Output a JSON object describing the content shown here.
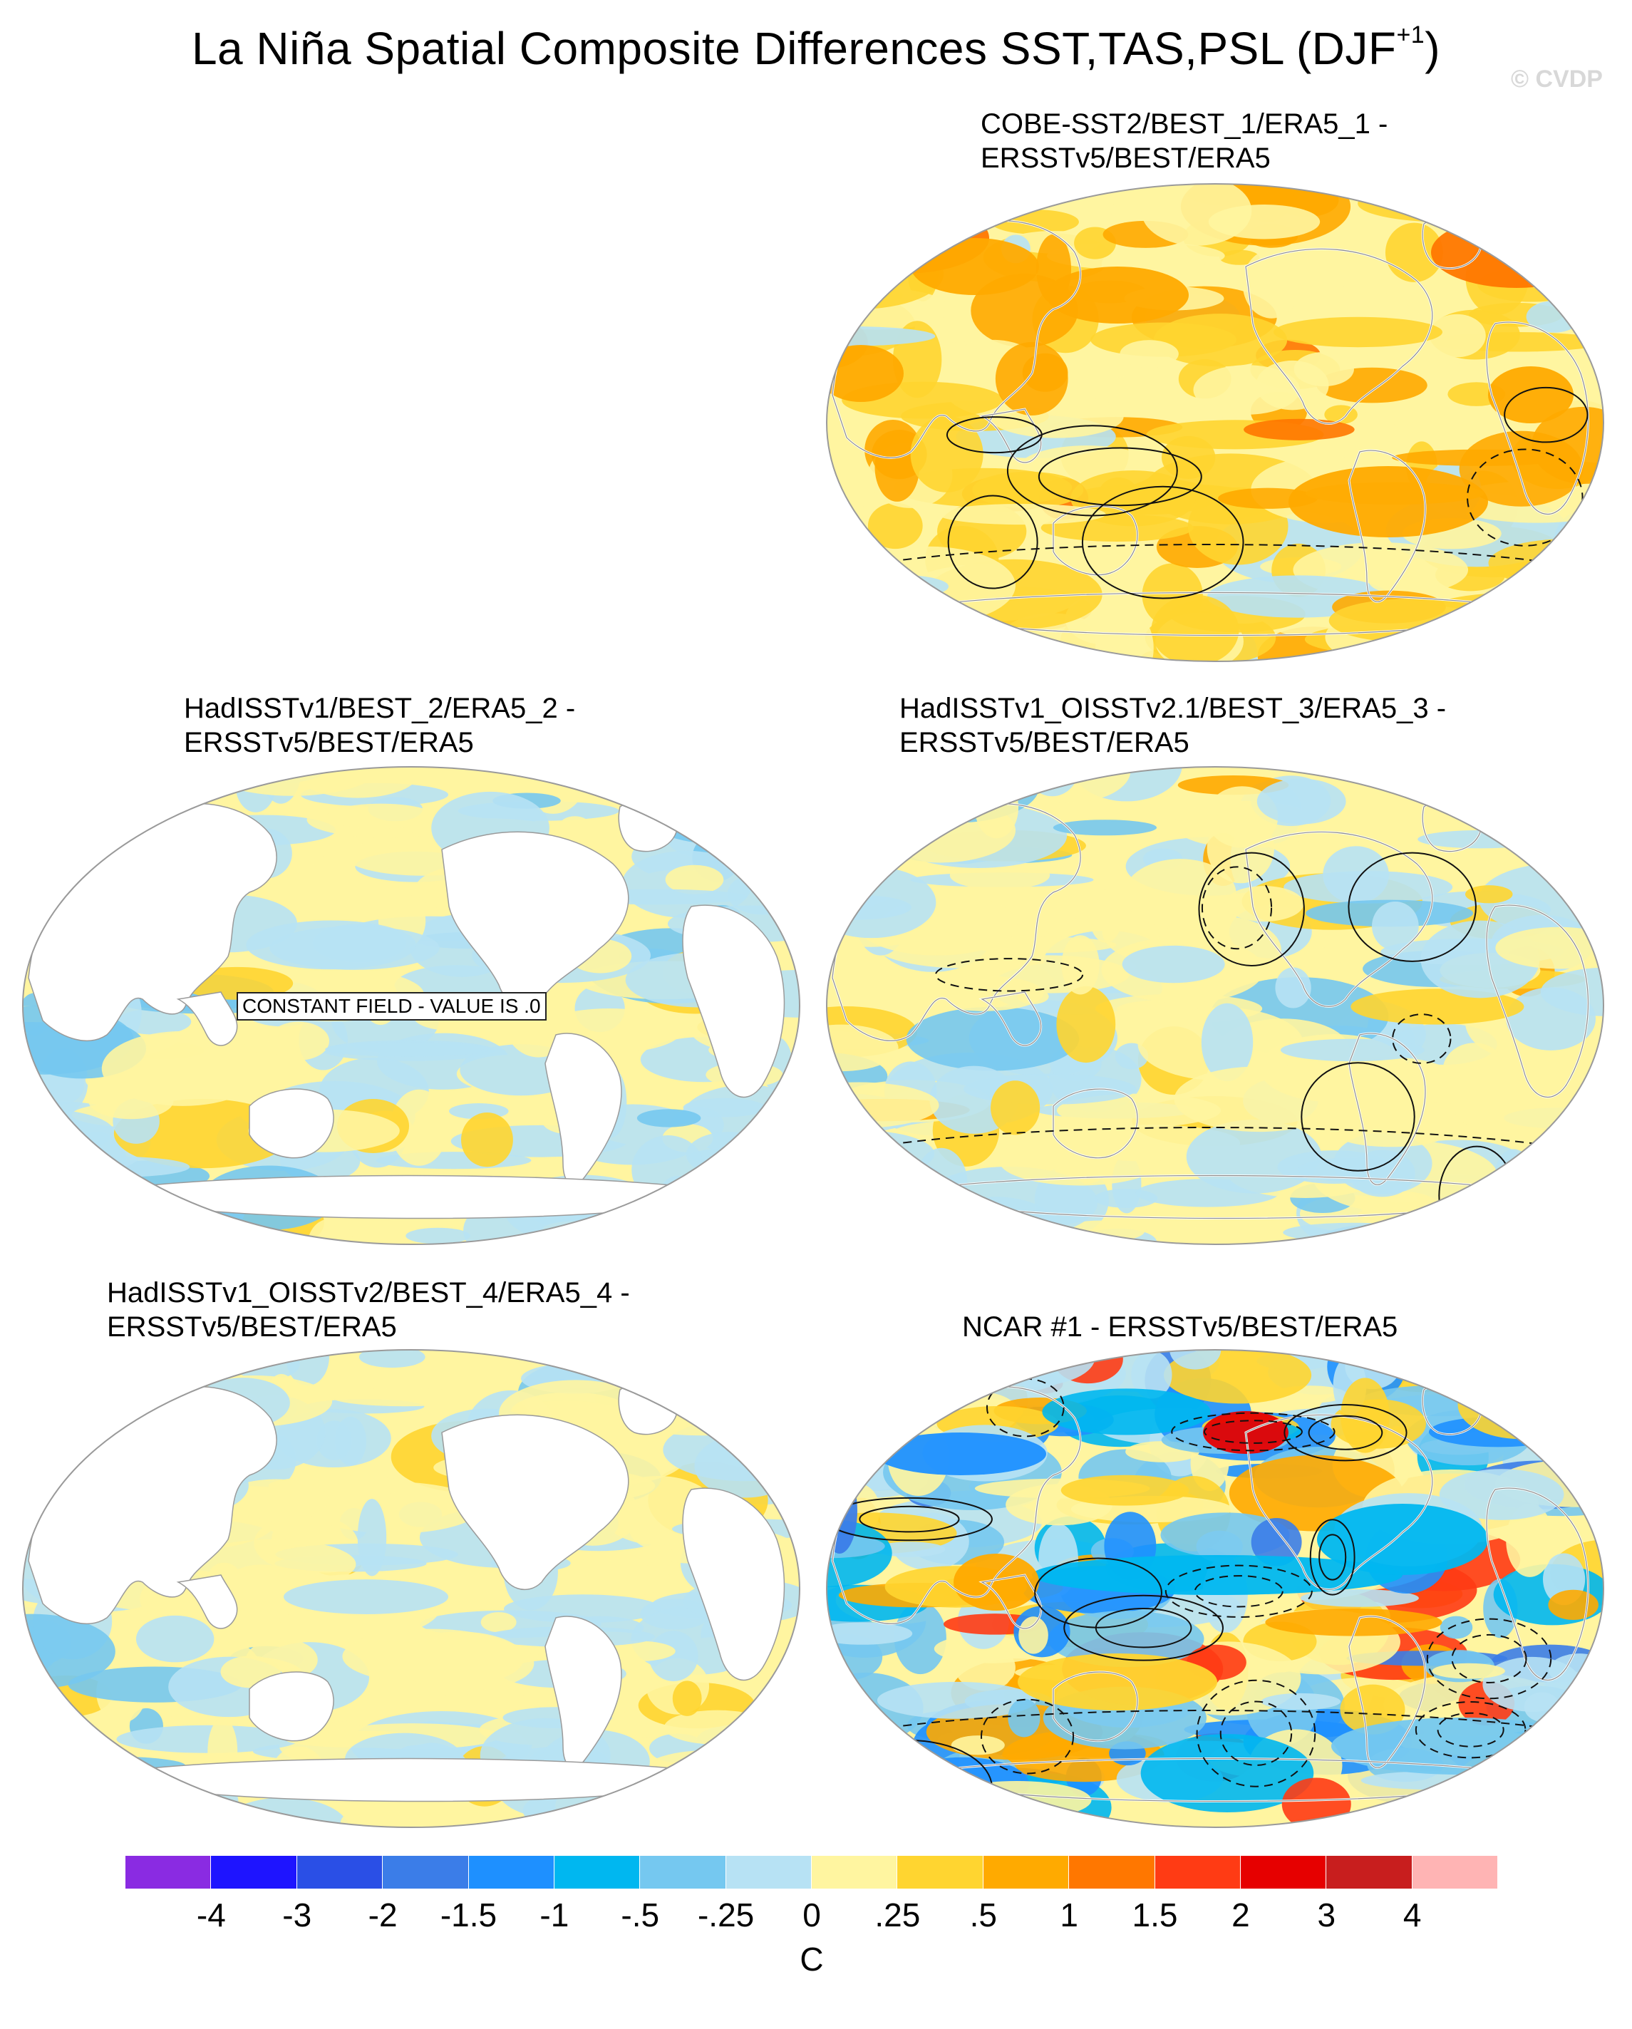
{
  "figure": {
    "title_main": "La Niña Spatial Composite Differences SST,TAS,PSL (DJF",
    "title_sup": "+1",
    "title_close": ")",
    "watermark": "© CVDP"
  },
  "panels": [
    {
      "title_line1": "COBE-SST2/BEST_1/ERA5_1 -",
      "title_line2": "ERSSTv5/BEST/ERA5",
      "pattern": "warm",
      "projection": "pacific-centered",
      "field": "full"
    },
    {
      "title_line1": "HadISSTv1/BEST_2/ERA5_2 -",
      "title_line2": "ERSSTv5/BEST/ERA5",
      "pattern": "weak",
      "projection": "pacific-centered",
      "field": "ocean-only",
      "annotation": "CONSTANT FIELD - VALUE IS .0"
    },
    {
      "title_line1": "HadISSTv1_OISSTv2.1/BEST_3/ERA5_3 -",
      "title_line2": "ERSSTv5/BEST/ERA5",
      "pattern": "mixed",
      "projection": "pacific-centered",
      "field": "full"
    },
    {
      "title_line1": "HadISSTv1_OISSTv2/BEST_4/ERA5_4 -",
      "title_line2": "ERSSTv5/BEST/ERA5",
      "pattern": "weak",
      "projection": "pacific-centered",
      "field": "ocean-only"
    },
    {
      "title_line1": "NCAR #1 - ERSSTv5/BEST/ERA5",
      "title_line2": "",
      "pattern": "strong",
      "projection": "pacific-centered",
      "field": "full"
    }
  ],
  "colorbar": {
    "colors": [
      "#8a2be2",
      "#1e14ff",
      "#2a4fe6",
      "#3b7de8",
      "#1e90ff",
      "#00b7f0",
      "#75c8f0",
      "#b7e2f4",
      "#fff5a0",
      "#ffd530",
      "#ffaa00",
      "#ff7700",
      "#ff3b14",
      "#e60000",
      "#c81e1e",
      "#ffb4b4"
    ],
    "tick_labels": [
      "-4",
      "-3",
      "-2",
      "-1.5",
      "-1",
      "-.5",
      "-.25",
      "0",
      ".25",
      ".5",
      "1",
      "1.5",
      "2",
      "3",
      "4"
    ],
    "unit": "C"
  }
}
